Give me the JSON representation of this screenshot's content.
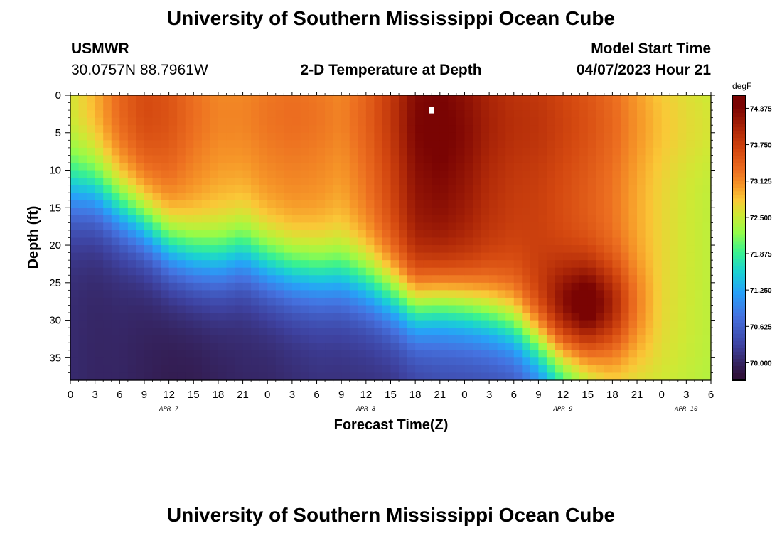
{
  "header": {
    "title": "University of Southern Mississippi Ocean Cube",
    "station": "USMWR",
    "coords": "30.0757N  88.7961W",
    "subtitle": "2-D Temperature at Depth",
    "model_label": "Model Start Time",
    "model_time": "04/07/2023 Hour 21"
  },
  "footer": {
    "title": "University of Southern Mississippi Ocean Cube"
  },
  "chart_data": {
    "type": "heatmap",
    "title": "2-D Temperature at Depth",
    "xlabel": "Forecast Time(Z)",
    "ylabel": "Depth (ft)",
    "x_ticks": [
      "0",
      "3",
      "6",
      "9",
      "12",
      "15",
      "18",
      "21",
      "0",
      "3",
      "6",
      "9",
      "12",
      "15",
      "18",
      "21",
      "0",
      "3",
      "6",
      "9",
      "12",
      "15",
      "18",
      "21",
      "0",
      "3",
      "6"
    ],
    "x_range_hours": [
      0,
      78
    ],
    "day_labels": [
      {
        "label": "APR 7",
        "hour": 12
      },
      {
        "label": "APR 8",
        "hour": 36
      },
      {
        "label": "APR 9",
        "hour": 60
      },
      {
        "label": "APR 10",
        "hour": 75
      }
    ],
    "y_ticks": [
      "0",
      "5",
      "10",
      "15",
      "20",
      "25",
      "30",
      "35"
    ],
    "y_range_ft": [
      0,
      38
    ],
    "colorbar": {
      "unit": "degF",
      "ticks": [
        "74.375",
        "73.750",
        "73.125",
        "72.500",
        "71.875",
        "71.250",
        "70.625",
        "70.000"
      ],
      "range": [
        69.7,
        74.6
      ]
    },
    "marker": {
      "hour": 44,
      "depth_ft": 2
    },
    "columns": [
      {
        "h": 0,
        "top": 72.5,
        "bottom": 70.05,
        "thermocline_ft": 13,
        "warm_core_ft": 3,
        "deep_warm": 0
      },
      {
        "h": 3,
        "top": 72.85,
        "bottom": 70.0,
        "thermocline_ft": 13,
        "warm_core_ft": 3,
        "deep_warm": 0
      },
      {
        "h": 6,
        "top": 73.3,
        "bottom": 70.0,
        "thermocline_ft": 15,
        "warm_core_ft": 3,
        "deep_warm": 0
      },
      {
        "h": 9,
        "top": 73.55,
        "bottom": 69.95,
        "thermocline_ft": 17,
        "warm_core_ft": 3,
        "deep_warm": 0
      },
      {
        "h": 12,
        "top": 73.45,
        "bottom": 69.9,
        "thermocline_ft": 20,
        "warm_core_ft": 3,
        "deep_warm": 0
      },
      {
        "h": 15,
        "top": 73.2,
        "bottom": 69.9,
        "thermocline_ft": 21.5,
        "warm_core_ft": 3,
        "deep_warm": 0
      },
      {
        "h": 18,
        "top": 73.05,
        "bottom": 69.95,
        "thermocline_ft": 22,
        "warm_core_ft": 3,
        "deep_warm": 0
      },
      {
        "h": 21,
        "top": 73.05,
        "bottom": 70.0,
        "thermocline_ft": 21,
        "warm_core_ft": 3,
        "deep_warm": 0
      },
      {
        "h": 24,
        "top": 73.15,
        "bottom": 70.0,
        "thermocline_ft": 22.5,
        "warm_core_ft": 3,
        "deep_warm": 0
      },
      {
        "h": 27,
        "top": 73.2,
        "bottom": 70.05,
        "thermocline_ft": 23.5,
        "warm_core_ft": 3,
        "deep_warm": 0
      },
      {
        "h": 30,
        "top": 73.15,
        "bottom": 70.1,
        "thermocline_ft": 24,
        "warm_core_ft": 3,
        "deep_warm": 0
      },
      {
        "h": 33,
        "top": 73.05,
        "bottom": 70.1,
        "thermocline_ft": 24,
        "warm_core_ft": 3,
        "deep_warm": 0
      },
      {
        "h": 36,
        "top": 73.3,
        "bottom": 70.1,
        "thermocline_ft": 25,
        "warm_core_ft": 3,
        "deep_warm": 0
      },
      {
        "h": 39,
        "top": 73.7,
        "bottom": 70.1,
        "thermocline_ft": 26.5,
        "warm_core_ft": 3,
        "deep_warm": 0
      },
      {
        "h": 42,
        "top": 74.25,
        "bottom": 70.2,
        "thermocline_ft": 28,
        "warm_core_ft": 4,
        "deep_warm": 0
      },
      {
        "h": 45,
        "top": 74.35,
        "bottom": 70.3,
        "thermocline_ft": 27.5,
        "warm_core_ft": 5,
        "deep_warm": 0
      },
      {
        "h": 48,
        "top": 74.2,
        "bottom": 70.3,
        "thermocline_ft": 28,
        "warm_core_ft": 5,
        "deep_warm": 0
      },
      {
        "h": 51,
        "top": 73.95,
        "bottom": 70.3,
        "thermocline_ft": 29,
        "warm_core_ft": 4,
        "deep_warm": 0
      },
      {
        "h": 54,
        "top": 73.8,
        "bottom": 70.3,
        "thermocline_ft": 30.5,
        "warm_core_ft": 4,
        "deep_warm": 0
      },
      {
        "h": 57,
        "top": 73.75,
        "bottom": 70.5,
        "thermocline_ft": 33,
        "warm_core_ft": 4,
        "deep_warm": 0.2
      },
      {
        "h": 60,
        "top": 73.6,
        "bottom": 71.0,
        "thermocline_ft": 36,
        "warm_core_ft": 4,
        "deep_warm": 0.6
      },
      {
        "h": 63,
        "top": 73.45,
        "bottom": 71.6,
        "thermocline_ft": 37.5,
        "warm_core_ft": 4,
        "deep_warm": 0.9
      },
      {
        "h": 66,
        "top": 73.25,
        "bottom": 72.2,
        "thermocline_ft": 38,
        "warm_core_ft": 4,
        "deep_warm": 0.6
      },
      {
        "h": 69,
        "top": 72.95,
        "bottom": 72.3,
        "thermocline_ft": 38,
        "warm_core_ft": 4,
        "deep_warm": 0.2
      },
      {
        "h": 72,
        "top": 72.7,
        "bottom": 72.4,
        "thermocline_ft": 38,
        "warm_core_ft": 4,
        "deep_warm": 0
      },
      {
        "h": 75,
        "top": 72.55,
        "bottom": 72.4,
        "thermocline_ft": 38,
        "warm_core_ft": 4,
        "deep_warm": 0
      },
      {
        "h": 78,
        "top": 72.45,
        "bottom": 72.35,
        "thermocline_ft": 38,
        "warm_core_ft": 4,
        "deep_warm": 0
      }
    ]
  }
}
